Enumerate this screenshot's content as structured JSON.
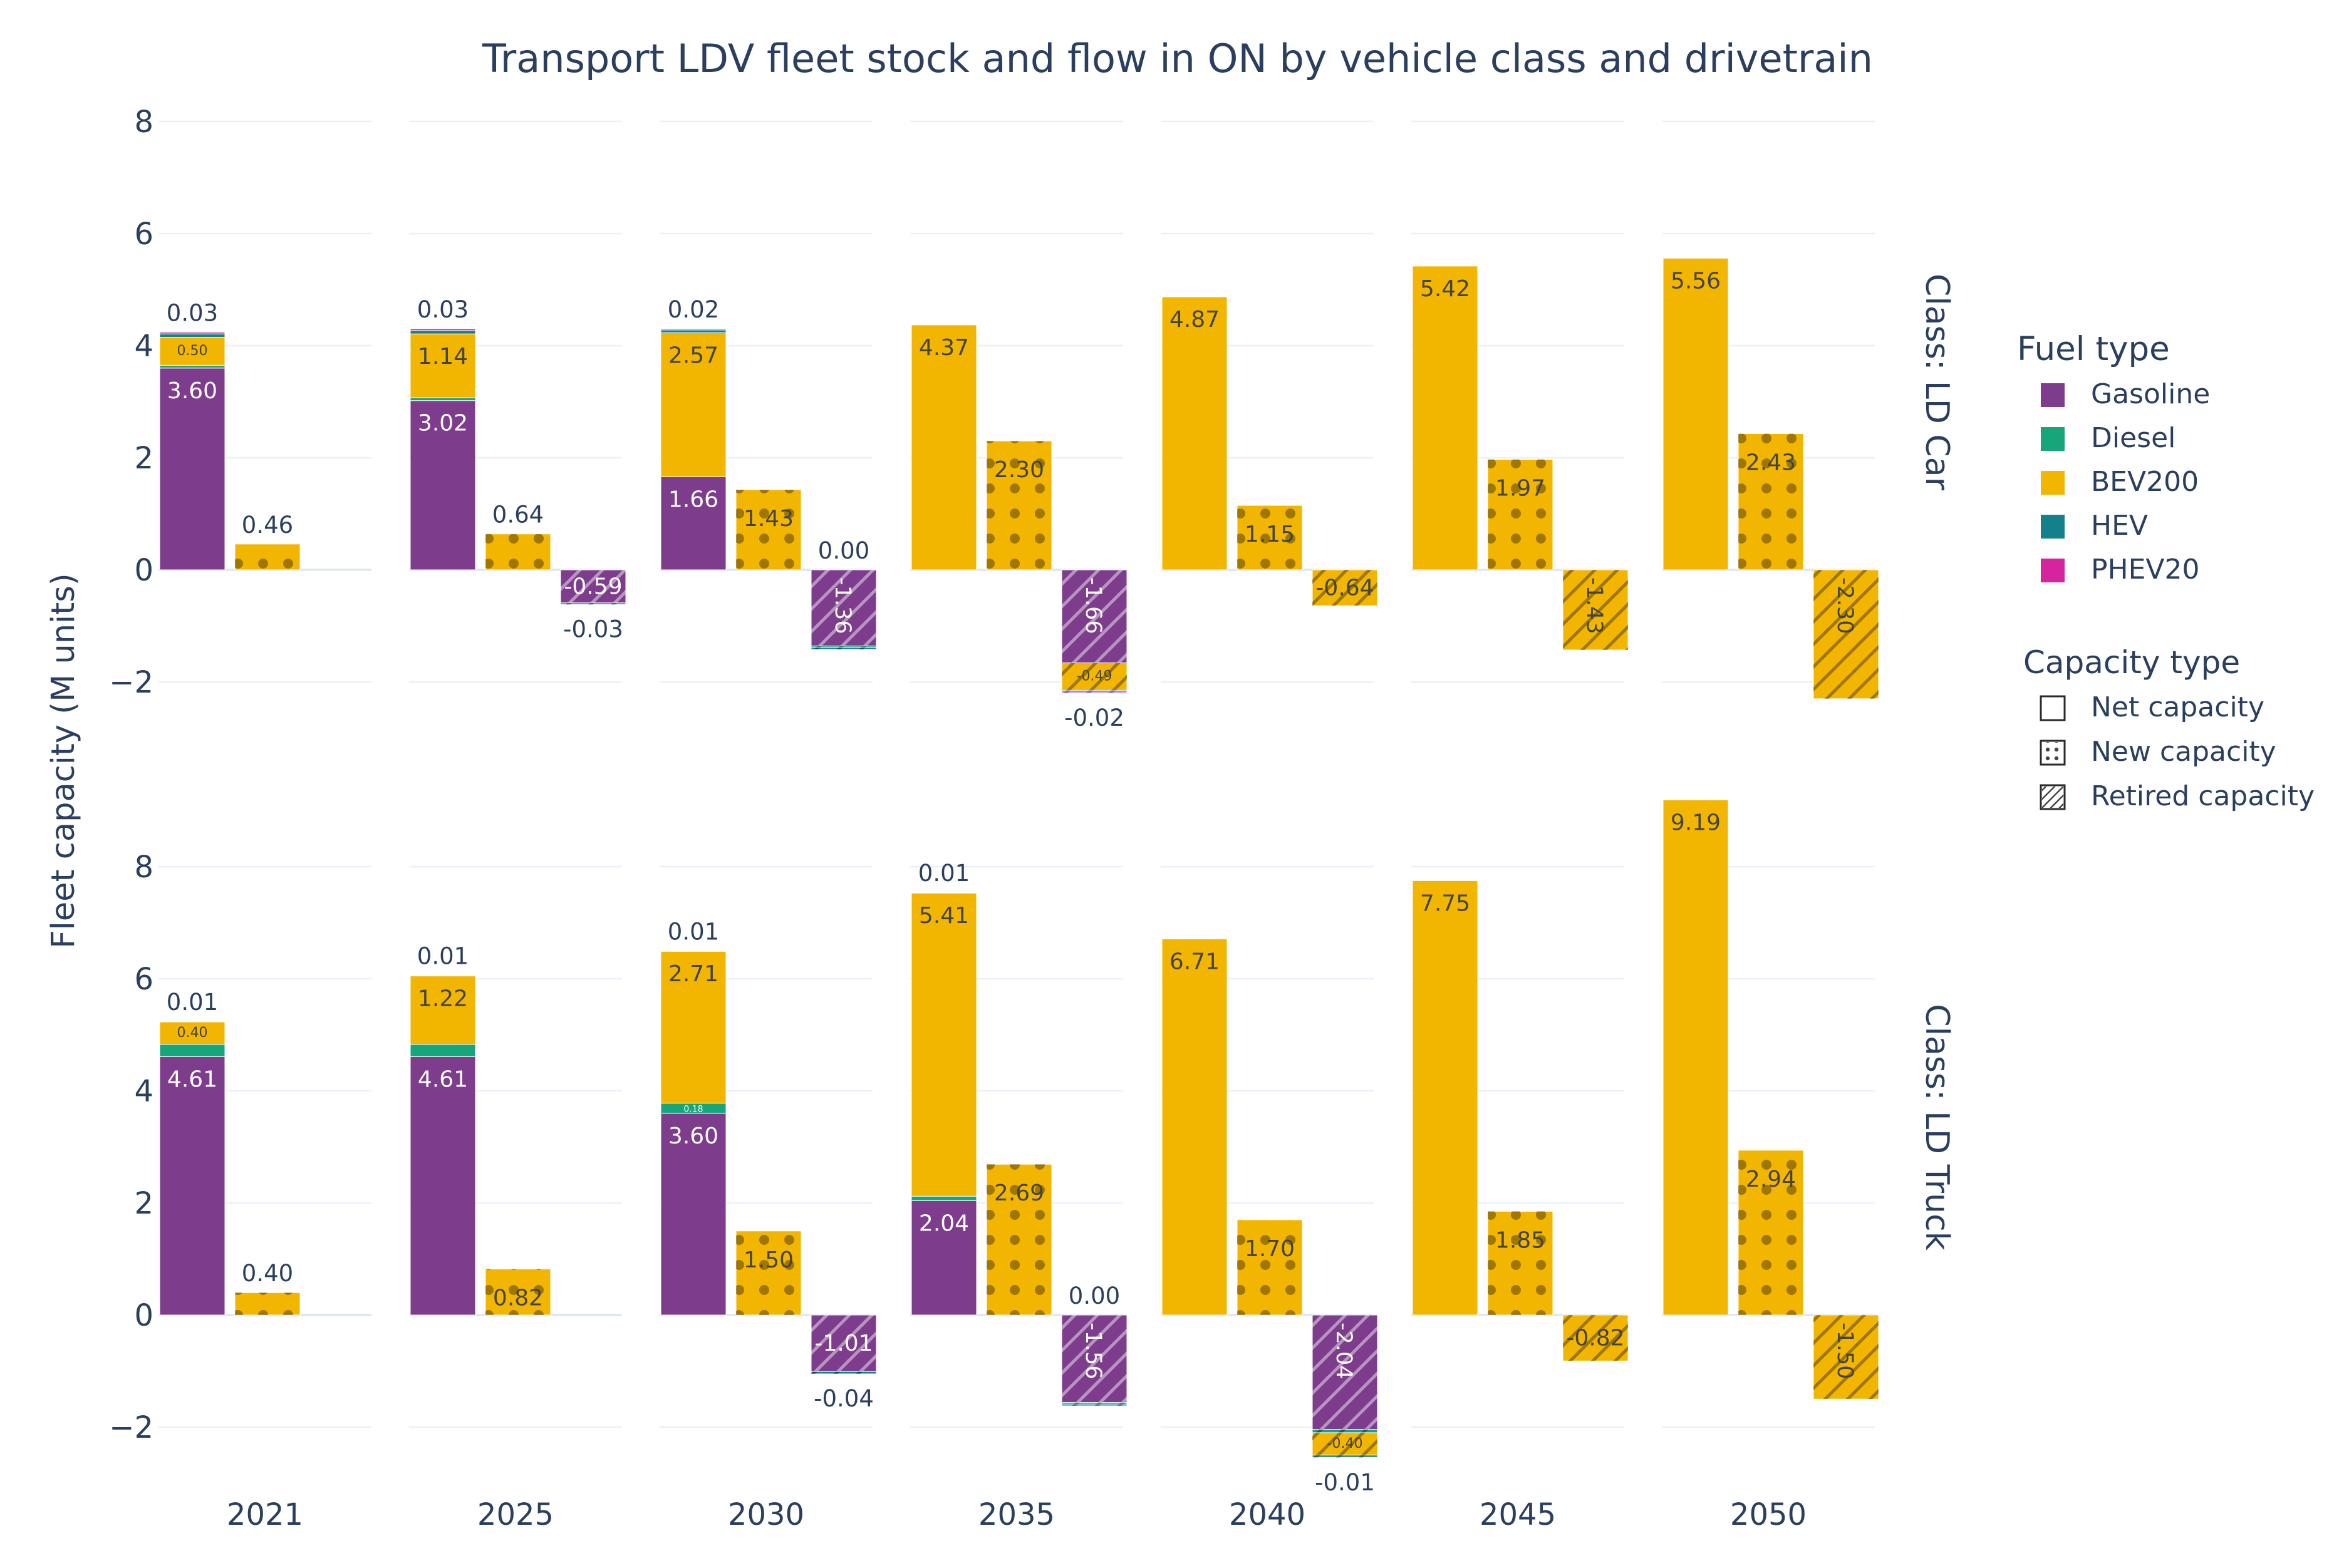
{
  "chart_data": {
    "type": "bar",
    "title": "Transport LDV fleet stock and flow in ON by vehicle class and drivetrain",
    "ylabel": "Fleet capacity (M units)",
    "ylim": [
      -2.6,
      8.2
    ],
    "yticks": [
      -2,
      0,
      2,
      4,
      6,
      8
    ],
    "ytick_labels": [
      "−2",
      "0",
      "2",
      "4",
      "6",
      "8"
    ],
    "years": [
      "2021",
      "2025",
      "2030",
      "2035",
      "2040",
      "2045",
      "2050"
    ],
    "fuel_types": [
      {
        "name": "Gasoline",
        "color": "#7d3c8c"
      },
      {
        "name": "Diesel",
        "color": "#17a57a"
      },
      {
        "name": "BEV200",
        "color": "#f2b600"
      },
      {
        "name": "HEV",
        "color": "#13818c"
      },
      {
        "name": "PHEV20",
        "color": "#d6249f"
      }
    ],
    "capacity_types": [
      "Net capacity",
      "New capacity",
      "Retired capacity"
    ],
    "legend": {
      "fuel_title": "Fuel type",
      "capacity_title": "Capacity type",
      "position": "right"
    },
    "panels": [
      {
        "label": "Class: LD Car",
        "groups": [
          {
            "year": "2021",
            "net": [
              {
                "fuel": "Gasoline",
                "value": 3.6,
                "label": "3.60"
              },
              {
                "fuel": "Diesel",
                "value": 0.05
              },
              {
                "fuel": "BEV200",
                "value": 0.5,
                "label": "0.50",
                "small": true
              },
              {
                "fuel": "HEV",
                "value": 0.06
              },
              {
                "fuel": "PHEV20",
                "value": 0.03,
                "label": "0.03",
                "outside": true
              }
            ],
            "new": [
              {
                "fuel": "BEV200",
                "value": 0.46,
                "label": "0.46",
                "outside": true
              }
            ],
            "retired": []
          },
          {
            "year": "2025",
            "net": [
              {
                "fuel": "Gasoline",
                "value": 3.02,
                "label": "3.02"
              },
              {
                "fuel": "Diesel",
                "value": 0.05
              },
              {
                "fuel": "BEV200",
                "value": 1.14,
                "label": "1.14"
              },
              {
                "fuel": "HEV",
                "value": 0.06
              },
              {
                "fuel": "PHEV20",
                "value": 0.03,
                "label": "0.03",
                "outside": true
              }
            ],
            "new": [
              {
                "fuel": "BEV200",
                "value": 0.64,
                "label": "0.64",
                "outside": true
              }
            ],
            "retired": [
              {
                "fuel": "Gasoline",
                "value": -0.59,
                "label": "-0.59"
              },
              {
                "fuel": "Diesel",
                "value": -0.03,
                "label": "-0.03",
                "outside": true
              }
            ]
          },
          {
            "year": "2030",
            "net": [
              {
                "fuel": "Gasoline",
                "value": 1.66,
                "label": "1.66"
              },
              {
                "fuel": "BEV200",
                "value": 2.57,
                "label": "2.57"
              },
              {
                "fuel": "HEV",
                "value": 0.05
              },
              {
                "fuel": "PHEV20",
                "value": 0.02,
                "label": "0.02",
                "outside": true
              }
            ],
            "new": [
              {
                "fuel": "BEV200",
                "value": 1.43,
                "label": "1.43"
              }
            ],
            "retired": [
              {
                "fuel": "Gasoline",
                "value": -1.36,
                "label": "-1.36",
                "rotate": true
              },
              {
                "fuel": "Diesel",
                "value": -0.03
              },
              {
                "fuel": "HEV",
                "value": -0.03
              },
              {
                "fuel": "PHEV20",
                "value": 0.0,
                "label": "0.00",
                "outside": true
              }
            ]
          },
          {
            "year": "2035",
            "net": [
              {
                "fuel": "BEV200",
                "value": 4.37,
                "label": "4.37"
              }
            ],
            "new": [
              {
                "fuel": "BEV200",
                "value": 2.3,
                "label": "2.30"
              }
            ],
            "retired": [
              {
                "fuel": "Gasoline",
                "value": -1.66,
                "label": "-1.66",
                "rotate": true
              },
              {
                "fuel": "BEV200",
                "value": -0.49,
                "label": "-0.49",
                "small": true
              },
              {
                "fuel": "HEV",
                "value": -0.03
              },
              {
                "fuel": "PHEV20",
                "value": -0.02,
                "label": "-0.02",
                "outside": true
              }
            ]
          },
          {
            "year": "2040",
            "net": [
              {
                "fuel": "BEV200",
                "value": 4.87,
                "label": "4.87"
              }
            ],
            "new": [
              {
                "fuel": "BEV200",
                "value": 1.15,
                "label": "1.15"
              }
            ],
            "retired": [
              {
                "fuel": "BEV200",
                "value": -0.64,
                "label": "-0.64"
              }
            ]
          },
          {
            "year": "2045",
            "net": [
              {
                "fuel": "BEV200",
                "value": 5.42,
                "label": "5.42"
              }
            ],
            "new": [
              {
                "fuel": "BEV200",
                "value": 1.97,
                "label": "1.97"
              }
            ],
            "retired": [
              {
                "fuel": "BEV200",
                "value": -1.43,
                "label": "-1.43",
                "rotate": true
              }
            ]
          },
          {
            "year": "2050",
            "net": [
              {
                "fuel": "BEV200",
                "value": 5.56,
                "label": "5.56"
              }
            ],
            "new": [
              {
                "fuel": "BEV200",
                "value": 2.43,
                "label": "2.43"
              }
            ],
            "retired": [
              {
                "fuel": "BEV200",
                "value": -2.3,
                "label": "-2.30",
                "rotate": true
              }
            ]
          }
        ]
      },
      {
        "label": "Class: LD Truck",
        "groups": [
          {
            "year": "2021",
            "net": [
              {
                "fuel": "Gasoline",
                "value": 4.61,
                "label": "4.61"
              },
              {
                "fuel": "Diesel",
                "value": 0.22
              },
              {
                "fuel": "BEV200",
                "value": 0.4,
                "label": "0.40",
                "small": true
              },
              {
                "fuel": "PHEV20",
                "value": 0.01,
                "label": "0.01",
                "outside": true
              }
            ],
            "new": [
              {
                "fuel": "BEV200",
                "value": 0.4,
                "label": "0.40",
                "outside": true
              }
            ],
            "retired": []
          },
          {
            "year": "2025",
            "net": [
              {
                "fuel": "Gasoline",
                "value": 4.61,
                "label": "4.61"
              },
              {
                "fuel": "Diesel",
                "value": 0.22
              },
              {
                "fuel": "BEV200",
                "value": 1.22,
                "label": "1.22"
              },
              {
                "fuel": "PHEV20",
                "value": 0.01,
                "label": "0.01",
                "outside": true
              }
            ],
            "new": [
              {
                "fuel": "BEV200",
                "value": 0.82,
                "label": "0.82"
              }
            ],
            "retired": []
          },
          {
            "year": "2030",
            "net": [
              {
                "fuel": "Gasoline",
                "value": 3.6,
                "label": "3.60"
              },
              {
                "fuel": "Diesel",
                "value": 0.18,
                "label": "0.18",
                "small": true
              },
              {
                "fuel": "BEV200",
                "value": 2.71,
                "label": "2.71"
              },
              {
                "fuel": "PHEV20",
                "value": 0.01,
                "label": "0.01",
                "outside": true
              }
            ],
            "new": [
              {
                "fuel": "BEV200",
                "value": 1.5,
                "label": "1.50"
              }
            ],
            "retired": [
              {
                "fuel": "Gasoline",
                "value": -1.01,
                "label": "-1.01"
              },
              {
                "fuel": "HEV",
                "value": -0.04,
                "label": "-0.04",
                "outside": true
              }
            ]
          },
          {
            "year": "2035",
            "net": [
              {
                "fuel": "Gasoline",
                "value": 2.04,
                "label": "2.04"
              },
              {
                "fuel": "Diesel",
                "value": 0.08
              },
              {
                "fuel": "BEV200",
                "value": 5.41,
                "label": "5.41"
              },
              {
                "fuel": "PHEV20",
                "value": 0.01,
                "label": "0.01",
                "outside": true
              }
            ],
            "new": [
              {
                "fuel": "BEV200",
                "value": 2.69,
                "label": "2.69"
              }
            ],
            "retired": [
              {
                "fuel": "Gasoline",
                "value": -1.56,
                "label": "-1.56",
                "rotate": true
              },
              {
                "fuel": "Diesel",
                "value": -0.03
              },
              {
                "fuel": "HEV",
                "value": -0.03
              },
              {
                "fuel": "PHEV20",
                "value": 0.0,
                "label": "0.00",
                "outside": true
              }
            ]
          },
          {
            "year": "2040",
            "net": [
              {
                "fuel": "BEV200",
                "value": 6.71,
                "label": "6.71"
              }
            ],
            "new": [
              {
                "fuel": "BEV200",
                "value": 1.7,
                "label": "1.70"
              }
            ],
            "retired": [
              {
                "fuel": "Gasoline",
                "value": -2.04,
                "label": "-2.04",
                "rotate": true
              },
              {
                "fuel": "Diesel",
                "value": -0.06
              },
              {
                "fuel": "HEV",
                "value": -0.04
              },
              {
                "fuel": "BEV200",
                "value": -0.4,
                "label": "-0.40",
                "small": true
              },
              {
                "fuel": "PHEV20",
                "value": -0.01,
                "label": "-0.01",
                "outside": true
              }
            ]
          },
          {
            "year": "2045",
            "net": [
              {
                "fuel": "BEV200",
                "value": 7.75,
                "label": "7.75"
              }
            ],
            "new": [
              {
                "fuel": "BEV200",
                "value": 1.85,
                "label": "1.85"
              }
            ],
            "retired": [
              {
                "fuel": "BEV200",
                "value": -0.82,
                "label": "-0.82"
              }
            ]
          },
          {
            "year": "2050",
            "net": [
              {
                "fuel": "BEV200",
                "value": 9.19,
                "label": "9.19"
              }
            ],
            "new": [
              {
                "fuel": "BEV200",
                "value": 2.94,
                "label": "2.94"
              }
            ],
            "retired": [
              {
                "fuel": "BEV200",
                "value": -1.5,
                "label": "-1.50",
                "rotate": true
              }
            ]
          }
        ]
      }
    ]
  }
}
